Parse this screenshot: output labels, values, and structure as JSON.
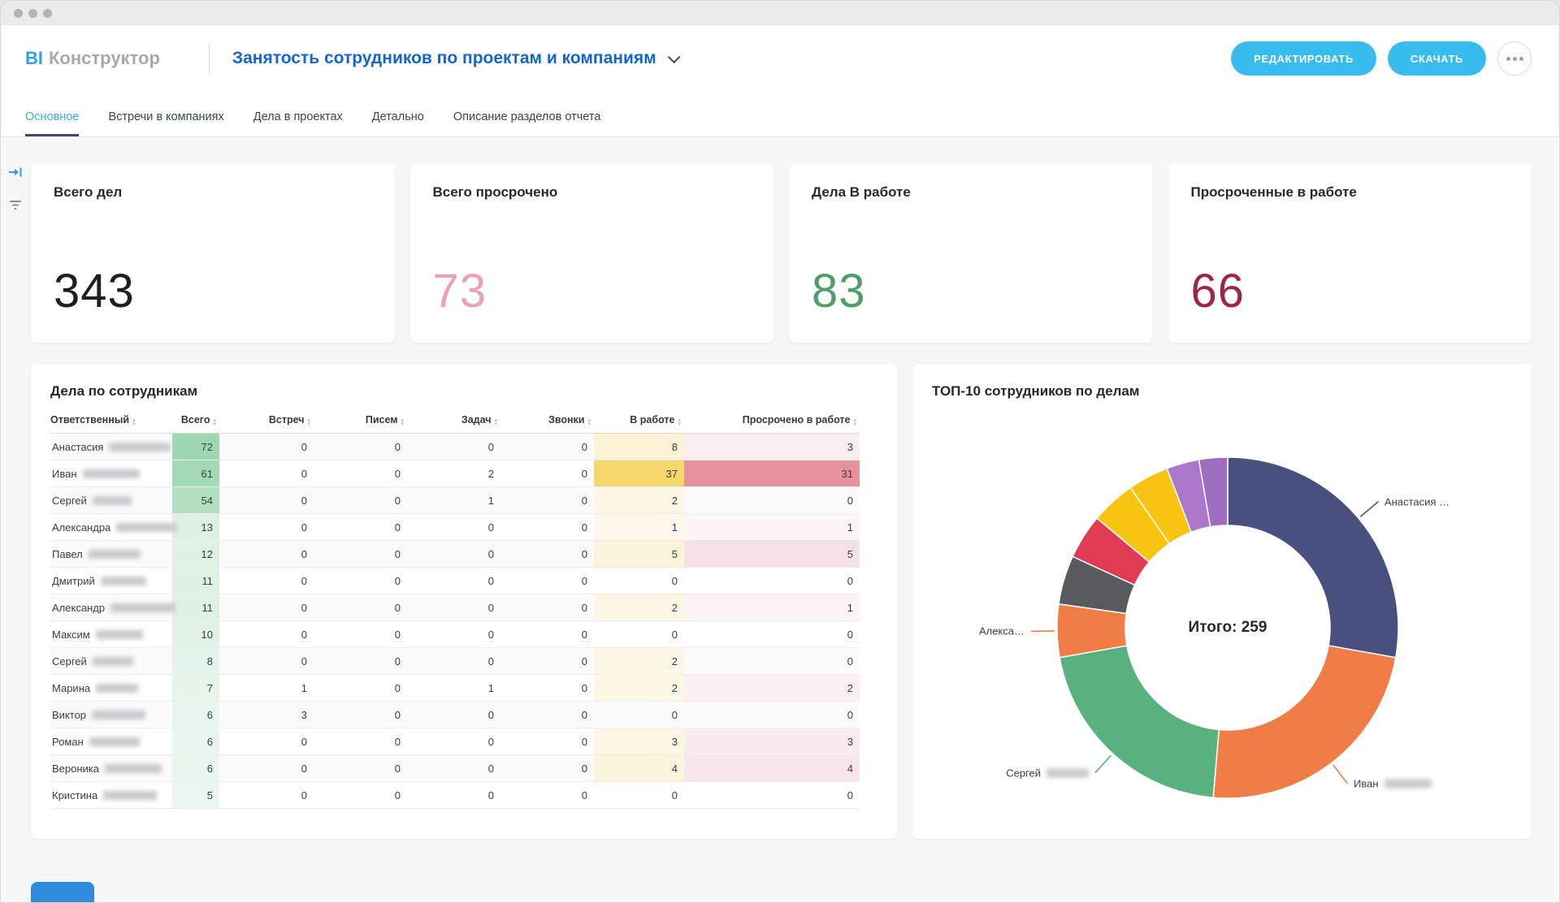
{
  "header": {
    "logo_primary": "BI",
    "logo_secondary": "Конструктор",
    "report_title": "Занятость сотрудников по проектам и компаниям",
    "buttons": {
      "edit": "РЕДАКТИРОВАТЬ",
      "download": "СКАЧАТЬ"
    },
    "accent_color": "#36bced"
  },
  "tabs": [
    {
      "label": "Основное",
      "active": true
    },
    {
      "label": "Встречи в компаниях",
      "active": false
    },
    {
      "label": "Дела в проектах",
      "active": false
    },
    {
      "label": "Детально",
      "active": false
    },
    {
      "label": "Описание разделов отчета",
      "active": false
    }
  ],
  "kpis": [
    {
      "title": "Всего дел",
      "value": "343",
      "color": "#1f1f1f"
    },
    {
      "title": "Всего просрочено",
      "value": "73",
      "color": "#eca3b1"
    },
    {
      "title": "Дела В работе",
      "value": "83",
      "color": "#4f9e69"
    },
    {
      "title": "Просроченные в работе",
      "value": "66",
      "color": "#9f2445"
    }
  ],
  "table": {
    "title": "Дела по сотрудникам",
    "columns": [
      "Ответственный",
      "Всего",
      "Встреч",
      "Писем",
      "Задач",
      "Звонки",
      "В работе",
      "Просрочено в работе"
    ],
    "rows": [
      {
        "name": "Анастасия",
        "blur_w": 76,
        "values": [
          72,
          0,
          0,
          0,
          0,
          8,
          3
        ],
        "bg": [
          "#9ed8b1",
          "",
          "",
          "",
          "",
          "#fcf3d6",
          "#faeef0"
        ]
      },
      {
        "name": "Иван",
        "blur_w": 70,
        "values": [
          61,
          0,
          0,
          2,
          0,
          37,
          31
        ],
        "bg": [
          "#a3dab5",
          "",
          "",
          "",
          "",
          "#f6d76e",
          "#e8919e"
        ]
      },
      {
        "name": "Сергей",
        "blur_w": 48,
        "values": [
          54,
          0,
          0,
          1,
          0,
          2,
          0
        ],
        "bg": [
          "#b1dfc0",
          "",
          "",
          "",
          "",
          "#fdf7e6",
          ""
        ]
      },
      {
        "name": "Александра",
        "blur_w": 74,
        "values": [
          13,
          0,
          0,
          0,
          0,
          1,
          1
        ],
        "bg": [
          "#ddf0e3",
          "",
          "",
          "",
          "",
          "#fdf8ea",
          "#fdf4f5"
        ]
      },
      {
        "name": "Павел",
        "blur_w": 64,
        "values": [
          12,
          0,
          0,
          0,
          0,
          5,
          5
        ],
        "bg": [
          "#def1e4",
          "",
          "",
          "",
          "",
          "#fcf4da",
          "#f6e1e4"
        ]
      },
      {
        "name": "Дмитрий",
        "blur_w": 56,
        "values": [
          11,
          0,
          0,
          0,
          0,
          0,
          0
        ],
        "bg": [
          "#dff1e5",
          "",
          "",
          "",
          "",
          "",
          ""
        ]
      },
      {
        "name": "Александр",
        "blur_w": 80,
        "values": [
          11,
          0,
          0,
          0,
          0,
          2,
          1
        ],
        "bg": [
          "#dff1e5",
          "",
          "",
          "",
          "",
          "#fdf7e6",
          "#fdf4f5"
        ]
      },
      {
        "name": "Максим",
        "blur_w": 58,
        "values": [
          10,
          0,
          0,
          0,
          0,
          0,
          0
        ],
        "bg": [
          "#e1f2e7",
          "",
          "",
          "",
          "",
          "",
          ""
        ]
      },
      {
        "name": "Сергей",
        "blur_w": 50,
        "values": [
          8,
          0,
          0,
          0,
          0,
          2,
          0
        ],
        "bg": [
          "#e5f4ea",
          "",
          "",
          "",
          "",
          "#fdf7e6",
          ""
        ]
      },
      {
        "name": "Марина",
        "blur_w": 52,
        "values": [
          7,
          1,
          0,
          1,
          0,
          2,
          2
        ],
        "bg": [
          "#e7f5eb",
          "",
          "",
          "",
          "",
          "#fdf7e6",
          "#fbeff1"
        ]
      },
      {
        "name": "Виктор",
        "blur_w": 66,
        "values": [
          6,
          3,
          0,
          0,
          0,
          0,
          0
        ],
        "bg": [
          "#e9f6ed",
          "",
          "",
          "",
          "",
          "",
          ""
        ]
      },
      {
        "name": "Роман",
        "blur_w": 62,
        "values": [
          6,
          0,
          0,
          0,
          0,
          3,
          3
        ],
        "bg": [
          "#e9f6ed",
          "",
          "",
          "",
          "",
          "#fdf6e2",
          "#f9eaed"
        ]
      },
      {
        "name": "Вероника",
        "blur_w": 70,
        "values": [
          6,
          0,
          0,
          0,
          0,
          4,
          4
        ],
        "bg": [
          "#e9f6ed",
          "",
          "",
          "",
          "",
          "#fcf5de",
          "#f8e7ea"
        ]
      },
      {
        "name": "Кристина",
        "blur_w": 66,
        "values": [
          5,
          0,
          0,
          0,
          0,
          0,
          0
        ],
        "bg": [
          "#ebf7ee",
          "",
          "",
          "",
          "",
          "",
          ""
        ]
      }
    ]
  },
  "chart_data": {
    "type": "pie",
    "title": "ТОП-10 сотрудников по делам",
    "center_label": "Итого: 259",
    "total": 259,
    "inner_radius_ratio": 0.6,
    "legend_position": "callouts",
    "segments": [
      {
        "name": "Анастасия",
        "value": 72,
        "color": "#47507f"
      },
      {
        "name": "Иван",
        "value": 61,
        "color": "#ef7d45"
      },
      {
        "name": "Сергей",
        "value": 54,
        "color": "#57b27d"
      },
      {
        "name": "Александра",
        "value": 13,
        "color": "#ef7d45"
      },
      {
        "name": "Павел",
        "value": 12,
        "color": "#595a5e"
      },
      {
        "name": "Дмитрий",
        "value": 11,
        "color": "#e13a54"
      },
      {
        "name": "Александр",
        "value": 11,
        "color": "#f6c411"
      },
      {
        "name": "Максим",
        "value": 10,
        "color": "#f6c411"
      },
      {
        "name": "Сергей",
        "value": 8,
        "color": "#aa77ca"
      },
      {
        "name": "Марина",
        "value": 7,
        "color": "#a06ec0"
      }
    ],
    "callouts": [
      {
        "segment": 0,
        "label": "Анастасия …",
        "blur": false,
        "blur_w": 0
      },
      {
        "segment": 1,
        "label": "Иван",
        "blur": true,
        "blur_w": 58
      },
      {
        "segment": 2,
        "label": "Сергей",
        "blur": true,
        "blur_w": 52
      },
      {
        "segment": 3,
        "label": "Алекса…",
        "blur": false,
        "blur_w": 0
      }
    ]
  }
}
